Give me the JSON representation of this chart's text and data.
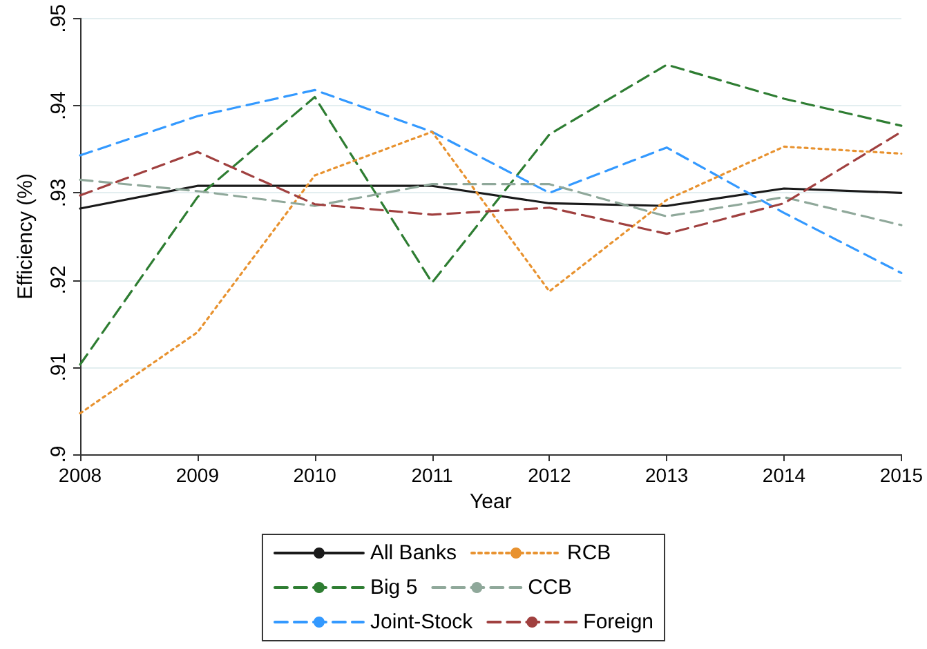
{
  "chart_data": {
    "type": "line",
    "xlabel": "Year",
    "ylabel": "Efficiency (%)",
    "x": [
      2008,
      2009,
      2010,
      2011,
      2012,
      2013,
      2014,
      2015
    ],
    "xlim": [
      2008,
      2015
    ],
    "xticks": [
      2008,
      2009,
      2010,
      2011,
      2012,
      2013,
      2014,
      2015
    ],
    "ylim": [
      0.9,
      0.95
    ],
    "yticks": [
      {
        "value": 0.9,
        "label": ".9"
      },
      {
        "value": 0.91,
        "label": ".91"
      },
      {
        "value": 0.92,
        "label": ".92"
      },
      {
        "value": 0.93,
        "label": ".93"
      },
      {
        "value": 0.94,
        "label": ".94"
      },
      {
        "value": 0.95,
        "label": ".95"
      }
    ],
    "grid": "y",
    "legend": "bottom",
    "marker": "none",
    "series": [
      {
        "name": "All Banks",
        "color": "#1a1a1a",
        "line_style": "solid",
        "values": [
          0.9282,
          0.9308,
          0.9308,
          0.9308,
          0.9288,
          0.9285,
          0.9305,
          0.93
        ]
      },
      {
        "name": "Big 5",
        "color": "#2e7d32",
        "line_style": "dashed",
        "values": [
          0.9103,
          0.9295,
          0.941,
          0.9197,
          0.9367,
          0.9447,
          0.9408,
          0.9377
        ]
      },
      {
        "name": "Joint-Stock",
        "color": "#3399ff",
        "line_style": "dashed",
        "values": [
          0.9343,
          0.9388,
          0.9418,
          0.937,
          0.93,
          0.9352,
          0.9277,
          0.9208
        ]
      },
      {
        "name": "RCB",
        "color": "#e8922f",
        "line_style": "dotted",
        "values": [
          0.9047,
          0.914,
          0.932,
          0.937,
          0.9187,
          0.9292,
          0.9353,
          0.9345
        ]
      },
      {
        "name": "CCB",
        "color": "#8fa89a",
        "line_style": "dashed",
        "values": [
          0.9315,
          0.9302,
          0.9285,
          0.931,
          0.931,
          0.9273,
          0.9295,
          0.9263
        ]
      },
      {
        "name": "Foreign",
        "color": "#a0403f",
        "line_style": "dashed",
        "values": [
          0.9297,
          0.9347,
          0.9287,
          0.9275,
          0.9283,
          0.9253,
          0.9288,
          0.937
        ]
      }
    ]
  }
}
